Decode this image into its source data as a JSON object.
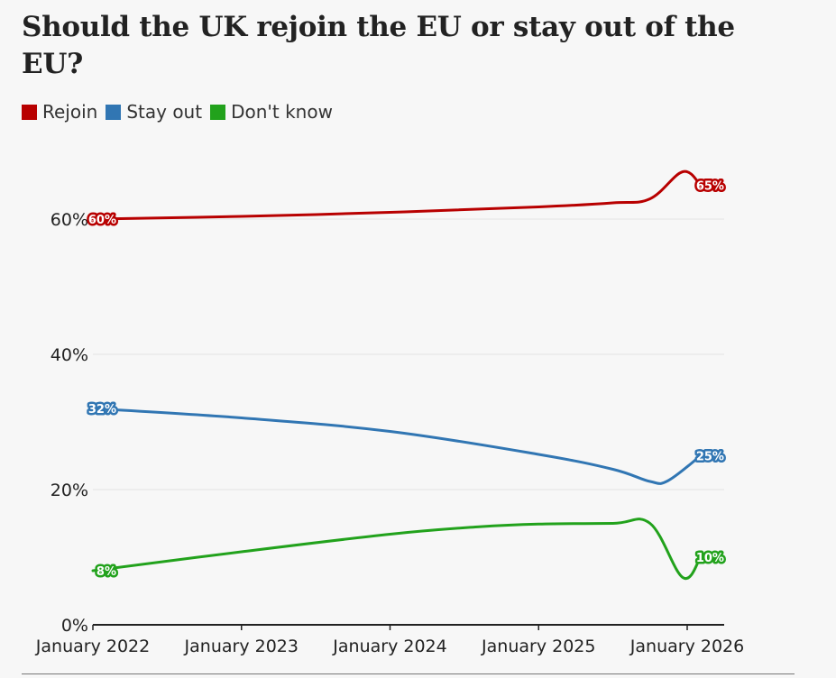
{
  "chart_data": {
    "type": "line",
    "title": "Should the UK rejoin the EU or stay out of the EU?",
    "xlabel": "",
    "ylabel": "",
    "x_ticks": [
      "January 2022",
      "January 2023",
      "January 2024",
      "January 2025",
      "January 2026"
    ],
    "x_tick_values": [
      2022,
      2023,
      2024,
      2025,
      2026
    ],
    "xlim": [
      2022,
      2026.25
    ],
    "y_ticks": [
      "0%",
      "20%",
      "40%",
      "60%"
    ],
    "y_tick_values": [
      0,
      20,
      40,
      60
    ],
    "ylim": [
      0,
      70
    ],
    "grid": true,
    "legend_position": "top-left",
    "series": [
      {
        "name": "Rejoin",
        "color": "#b80000",
        "x": [
          2022.0,
          2023.0,
          2024.0,
          2025.0,
          2025.5,
          2025.75,
          2025.97,
          2026.09
        ],
        "values": [
          60,
          60.4,
          61,
          61.8,
          62.4,
          63,
          67,
          65
        ],
        "start_label": "60%",
        "end_label": "65%"
      },
      {
        "name": "Stay out",
        "color": "#3176b3",
        "x": [
          2022.0,
          2023.0,
          2024.0,
          2025.0,
          2025.5,
          2025.75,
          2025.87,
          2026.09
        ],
        "values": [
          32,
          30.6,
          28.6,
          25.2,
          23,
          21.2,
          21.3,
          25
        ],
        "start_label": "32%",
        "end_label": "25%"
      },
      {
        "name": "Don't know",
        "color": "#22a21c",
        "x": [
          2022.0,
          2023.0,
          2024.0,
          2024.6,
          2025.0,
          2025.5,
          2025.75,
          2025.97,
          2026.09
        ],
        "values": [
          8,
          10.8,
          13.4,
          14.5,
          14.9,
          15,
          15,
          7,
          10
        ],
        "start_label": "8%",
        "end_label": "10%"
      }
    ]
  },
  "legend": [
    {
      "label": "Rejoin",
      "color": "#b80000"
    },
    {
      "label": "Stay out",
      "color": "#3176b3"
    },
    {
      "label": "Don't know",
      "color": "#22a21c"
    }
  ]
}
